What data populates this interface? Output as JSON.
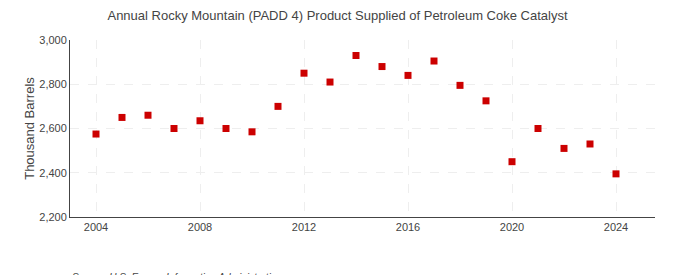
{
  "chart_data": {
    "type": "scatter",
    "title": "Annual Rocky Mountain (PADD 4) Product Supplied of Petroleum Coke Catalyst",
    "ylabel": "Thousand Barrels",
    "source": "Source: U.S. Energy Information Administration",
    "x": [
      2004,
      2005,
      2006,
      2007,
      2008,
      2009,
      2010,
      2011,
      2012,
      2013,
      2014,
      2015,
      2016,
      2017,
      2018,
      2019,
      2020,
      2021,
      2022,
      2023,
      2024
    ],
    "values": [
      2575,
      2650,
      2660,
      2600,
      2635,
      2600,
      2585,
      2700,
      2850,
      2810,
      2930,
      2880,
      2840,
      2905,
      2795,
      2725,
      2450,
      2600,
      2510,
      2530,
      2395
    ],
    "color": "#cc0000",
    "marker": "square",
    "xlim": [
      2003.0,
      2025.5
    ],
    "xticks": [
      2004,
      2008,
      2012,
      2016,
      2020,
      2024
    ],
    "ylim": [
      2200,
      3000
    ],
    "yticks": [
      {
        "value": 2200,
        "label": "2,200"
      },
      {
        "value": 2400,
        "label": "2,400"
      },
      {
        "value": 2600,
        "label": "2,600"
      },
      {
        "value": 2800,
        "label": "2,800"
      },
      {
        "value": 3000,
        "label": "3,000"
      }
    ],
    "grid": true
  }
}
